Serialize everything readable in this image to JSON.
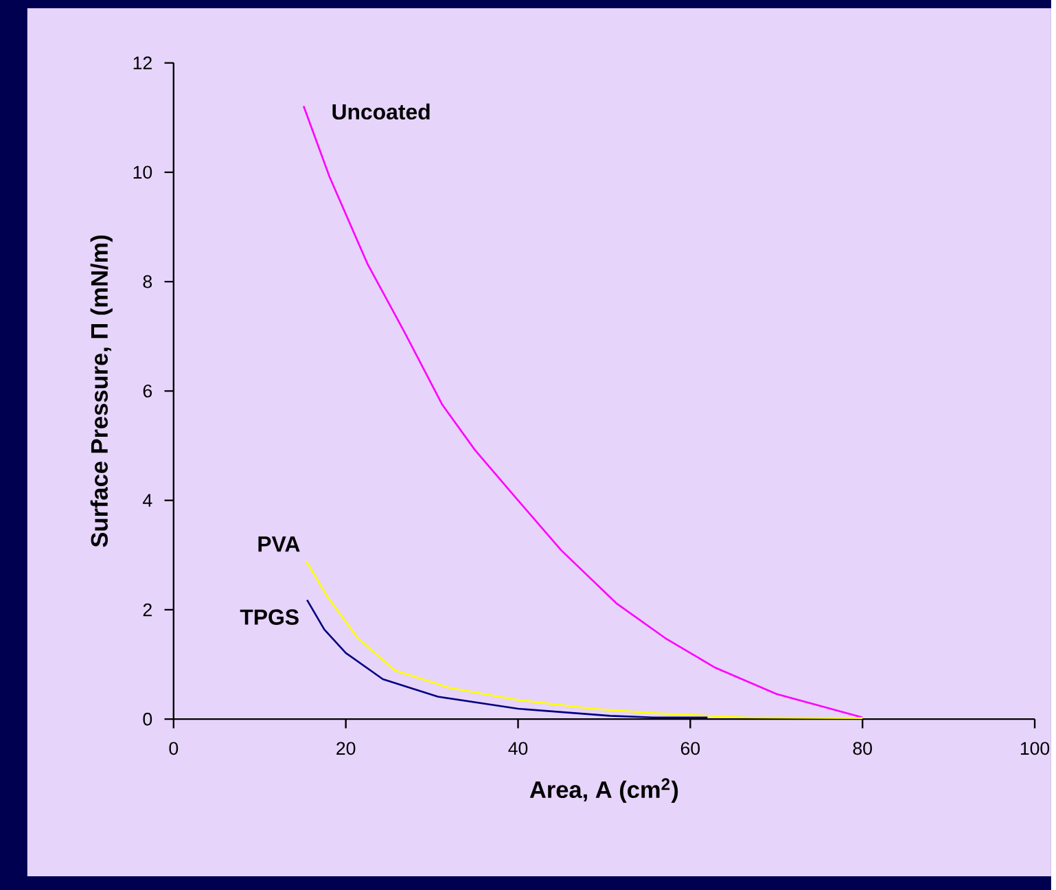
{
  "chart_data": {
    "type": "line",
    "xlabel": "Area, A (cm$^{2}$)",
    "ylabel": "Surface Pressure, Π (mN/m)",
    "xlim": [
      0,
      100
    ],
    "xticks": [
      0,
      20,
      40,
      60,
      80,
      100
    ],
    "ylim": [
      0,
      12
    ],
    "yticks": [
      0,
      2,
      4,
      6,
      8,
      10,
      12
    ],
    "grid": false,
    "marker": "none",
    "line_style": "solid",
    "series": [
      {
        "name": "Uncoated",
        "color": "#ff00ff",
        "x": [
          15.1,
          18.1,
          22.5,
          26.8,
          31.2,
          35.0,
          40.0,
          45.0,
          51.4,
          57.1,
          62.9,
          70.0,
          80.0
        ],
        "values": [
          11.21,
          9.92,
          8.33,
          7.08,
          5.75,
          4.92,
          4.0,
          3.09,
          2.12,
          1.48,
          0.94,
          0.46,
          0.03
        ]
      },
      {
        "name": "PVA",
        "color": "#ffff00",
        "x": [
          15.4,
          17.9,
          21.4,
          25.7,
          32.1,
          40.0,
          48.6,
          55.7,
          66.4,
          80.0
        ],
        "values": [
          2.89,
          2.23,
          1.48,
          0.89,
          0.57,
          0.35,
          0.19,
          0.11,
          0.03,
          0.02
        ]
      },
      {
        "name": "TPGS",
        "color": "#000080",
        "x": [
          15.5,
          17.5,
          20.0,
          24.3,
          30.7,
          40.0,
          50.7,
          55.7,
          62.0
        ],
        "values": [
          2.18,
          1.64,
          1.21,
          0.73,
          0.41,
          0.19,
          0.06,
          0.03,
          0.03
        ]
      }
    ]
  }
}
